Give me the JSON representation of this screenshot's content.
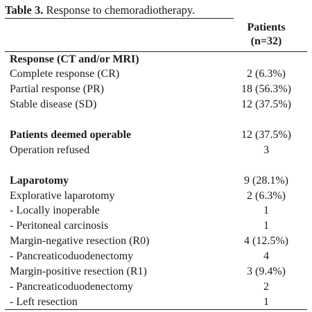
{
  "caption": {
    "label": "Table 3.",
    "text": " Response to chemoradiotherapy."
  },
  "header": {
    "col_line1": "Patients",
    "col_line2": "(n=32)"
  },
  "rows": [
    {
      "label": "Response (CT and/or MRI)",
      "value": ""
    },
    {
      "label": "Complete response (CR)",
      "value": "2 (6.3%)"
    },
    {
      "label": "Partial response (PR)",
      "value": "18 (56.3%)"
    },
    {
      "label": "Stable disease (SD)",
      "value": "12 (37.5%)"
    },
    {
      "label": "Patients deemed operable",
      "value": "12 (37.5%)"
    },
    {
      "label": "Operation refused",
      "value": "3"
    },
    {
      "label": "Laparotomy",
      "value": "9 (28.1%)"
    },
    {
      "label": "Explorative laparotomy",
      "value": "2 (6.3%)"
    },
    {
      "label": "- Locally inoperable",
      "value": "1"
    },
    {
      "label": "- Peritoneal carcinosis",
      "value": "1"
    },
    {
      "label": "Margin-negative resection (R0)",
      "value": "4 (12.5%)"
    },
    {
      "label": "- Pancreaticoduodenectomy",
      "value": "4"
    },
    {
      "label": "Margin-positive resection (R1)",
      "value": "3 (9.4%)"
    },
    {
      "label": "- Pancreaticoduodenectomy",
      "value": "2"
    },
    {
      "label": "- Left resection",
      "value": "1"
    }
  ]
}
